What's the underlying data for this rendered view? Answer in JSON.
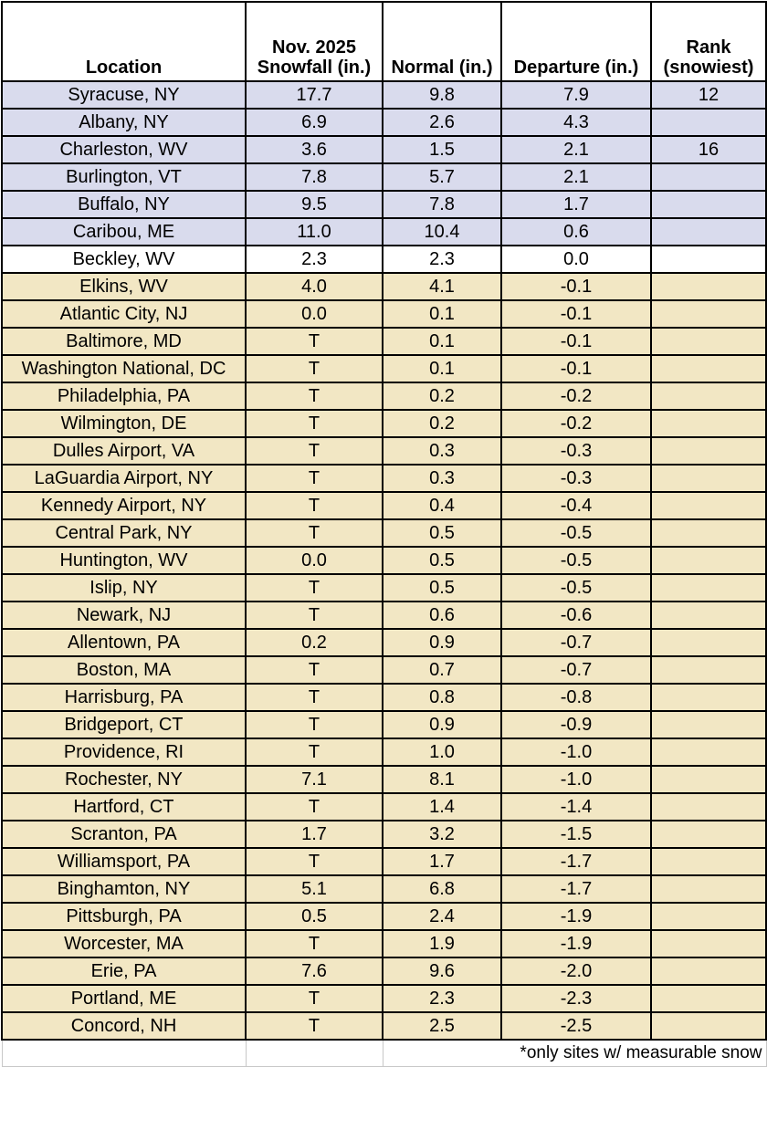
{
  "table": {
    "headers": {
      "location": [
        "Location"
      ],
      "snowfall": [
        "Nov. 2025",
        "Snowfall (in.)"
      ],
      "normal": [
        "Normal (in.)"
      ],
      "departure": [
        "Departure (in.)"
      ],
      "rank": [
        "Rank",
        "(snowiest)"
      ]
    },
    "colors": {
      "above_normal": "#d9dbed",
      "normal": "#ffffff",
      "below_normal": "#f2e7c4"
    },
    "rows": [
      {
        "location": "Syracuse, NY",
        "snowfall": "17.7",
        "normal": "9.8",
        "departure": "7.9",
        "rank": "12",
        "category": "above"
      },
      {
        "location": "Albany, NY",
        "snowfall": "6.9",
        "normal": "2.6",
        "departure": "4.3",
        "rank": "",
        "category": "above"
      },
      {
        "location": "Charleston, WV",
        "snowfall": "3.6",
        "normal": "1.5",
        "departure": "2.1",
        "rank": "16",
        "category": "above"
      },
      {
        "location": "Burlington, VT",
        "snowfall": "7.8",
        "normal": "5.7",
        "departure": "2.1",
        "rank": "",
        "category": "above"
      },
      {
        "location": "Buffalo, NY",
        "snowfall": "9.5",
        "normal": "7.8",
        "departure": "1.7",
        "rank": "",
        "category": "above"
      },
      {
        "location": "Caribou, ME",
        "snowfall": "11.0",
        "normal": "10.4",
        "departure": "0.6",
        "rank": "",
        "category": "above"
      },
      {
        "location": "Beckley, WV",
        "snowfall": "2.3",
        "normal": "2.3",
        "departure": "0.0",
        "rank": "",
        "category": "normal"
      },
      {
        "location": "Elkins, WV",
        "snowfall": "4.0",
        "normal": "4.1",
        "departure": "-0.1",
        "rank": "",
        "category": "below"
      },
      {
        "location": "Atlantic City, NJ",
        "snowfall": "0.0",
        "normal": "0.1",
        "departure": "-0.1",
        "rank": "",
        "category": "below"
      },
      {
        "location": "Baltimore, MD",
        "snowfall": "T",
        "normal": "0.1",
        "departure": "-0.1",
        "rank": "",
        "category": "below"
      },
      {
        "location": "Washington National, DC",
        "snowfall": "T",
        "normal": "0.1",
        "departure": "-0.1",
        "rank": "",
        "category": "below"
      },
      {
        "location": "Philadelphia, PA",
        "snowfall": "T",
        "normal": "0.2",
        "departure": "-0.2",
        "rank": "",
        "category": "below"
      },
      {
        "location": "Wilmington, DE",
        "snowfall": "T",
        "normal": "0.2",
        "departure": "-0.2",
        "rank": "",
        "category": "below"
      },
      {
        "location": "Dulles Airport, VA",
        "snowfall": "T",
        "normal": "0.3",
        "departure": "-0.3",
        "rank": "",
        "category": "below"
      },
      {
        "location": "LaGuardia Airport, NY",
        "snowfall": "T",
        "normal": "0.3",
        "departure": "-0.3",
        "rank": "",
        "category": "below"
      },
      {
        "location": "Kennedy Airport, NY",
        "snowfall": "T",
        "normal": "0.4",
        "departure": "-0.4",
        "rank": "",
        "category": "below"
      },
      {
        "location": "Central Park, NY",
        "snowfall": "T",
        "normal": "0.5",
        "departure": "-0.5",
        "rank": "",
        "category": "below"
      },
      {
        "location": "Huntington, WV",
        "snowfall": "0.0",
        "normal": "0.5",
        "departure": "-0.5",
        "rank": "",
        "category": "below"
      },
      {
        "location": "Islip, NY",
        "snowfall": "T",
        "normal": "0.5",
        "departure": "-0.5",
        "rank": "",
        "category": "below"
      },
      {
        "location": "Newark, NJ",
        "snowfall": "T",
        "normal": "0.6",
        "departure": "-0.6",
        "rank": "",
        "category": "below"
      },
      {
        "location": "Allentown, PA",
        "snowfall": "0.2",
        "normal": "0.9",
        "departure": "-0.7",
        "rank": "",
        "category": "below"
      },
      {
        "location": "Boston, MA",
        "snowfall": "T",
        "normal": "0.7",
        "departure": "-0.7",
        "rank": "",
        "category": "below"
      },
      {
        "location": "Harrisburg, PA",
        "snowfall": "T",
        "normal": "0.8",
        "departure": "-0.8",
        "rank": "",
        "category": "below"
      },
      {
        "location": "Bridgeport, CT",
        "snowfall": "T",
        "normal": "0.9",
        "departure": "-0.9",
        "rank": "",
        "category": "below"
      },
      {
        "location": "Providence, RI",
        "snowfall": "T",
        "normal": "1.0",
        "departure": "-1.0",
        "rank": "",
        "category": "below"
      },
      {
        "location": "Rochester, NY",
        "snowfall": "7.1",
        "normal": "8.1",
        "departure": "-1.0",
        "rank": "",
        "category": "below"
      },
      {
        "location": "Hartford, CT",
        "snowfall": "T",
        "normal": "1.4",
        "departure": "-1.4",
        "rank": "",
        "category": "below"
      },
      {
        "location": "Scranton, PA",
        "snowfall": "1.7",
        "normal": "3.2",
        "departure": "-1.5",
        "rank": "",
        "category": "below"
      },
      {
        "location": "Williamsport, PA",
        "snowfall": "T",
        "normal": "1.7",
        "departure": "-1.7",
        "rank": "",
        "category": "below"
      },
      {
        "location": "Binghamton, NY",
        "snowfall": "5.1",
        "normal": "6.8",
        "departure": "-1.7",
        "rank": "",
        "category": "below"
      },
      {
        "location": "Pittsburgh, PA",
        "snowfall": "0.5",
        "normal": "2.4",
        "departure": "-1.9",
        "rank": "",
        "category": "below"
      },
      {
        "location": "Worcester, MA",
        "snowfall": "T",
        "normal": "1.9",
        "departure": "-1.9",
        "rank": "",
        "category": "below"
      },
      {
        "location": "Erie, PA",
        "snowfall": "7.6",
        "normal": "9.6",
        "departure": "-2.0",
        "rank": "",
        "category": "below"
      },
      {
        "location": "Portland, ME",
        "snowfall": "T",
        "normal": "2.3",
        "departure": "-2.3",
        "rank": "",
        "category": "below"
      },
      {
        "location": "Concord, NH",
        "snowfall": "T",
        "normal": "2.5",
        "departure": "-2.5",
        "rank": "",
        "category": "below"
      }
    ],
    "footnote": "*only sites w/ measurable snow"
  }
}
